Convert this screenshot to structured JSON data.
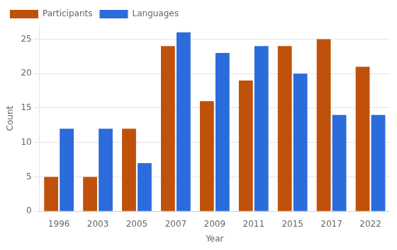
{
  "chart_data": {
    "type": "bar",
    "categories": [
      "1996",
      "2003",
      "2005",
      "2007",
      "2009",
      "2011",
      "2015",
      "2017",
      "2022"
    ],
    "series": [
      {
        "name": "Participants",
        "color": "#c0510a",
        "values": [
          5,
          5,
          12,
          24,
          16,
          19,
          24,
          25,
          21
        ]
      },
      {
        "name": "Languages",
        "color": "#2b6bdb",
        "values": [
          12,
          12,
          7,
          26,
          23,
          24,
          20,
          14,
          14
        ]
      }
    ],
    "xlabel": "Year",
    "ylabel": "Count",
    "ylim": [
      0,
      27
    ],
    "yticks": [
      0,
      5,
      10,
      15,
      20,
      25
    ],
    "grid": true,
    "legend": "upper left"
  }
}
